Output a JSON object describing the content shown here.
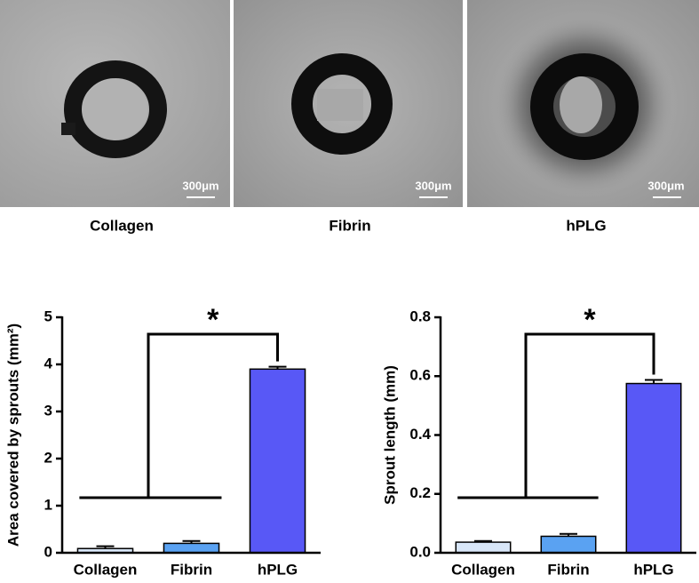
{
  "panels": [
    {
      "label": "Collagen",
      "scale_bar": "300μm"
    },
    {
      "label": "Fibrin",
      "scale_bar": "300μm"
    },
    {
      "label": "hPLG",
      "scale_bar": "300μm"
    }
  ],
  "chart_data": [
    {
      "type": "bar",
      "y_label": "Area covered by sprouts (mm²)",
      "categories": [
        "Collagen",
        "Fibrin",
        "hPLG"
      ],
      "values": [
        0.09,
        0.2,
        3.9
      ],
      "errors": [
        0.05,
        0.05,
        0.05
      ],
      "colors": [
        "#d8e6f8",
        "#5aa2f2",
        "#5858f6"
      ],
      "ylim": [
        0,
        5
      ],
      "yticks": [
        0,
        1,
        2,
        3,
        4,
        5
      ],
      "significance": "*"
    },
    {
      "type": "bar",
      "y_label": "Sprout length (mm)",
      "categories": [
        "Collagen",
        "Fibrin",
        "hPLG"
      ],
      "values": [
        0.036,
        0.056,
        0.575
      ],
      "errors": [
        0.004,
        0.008,
        0.012
      ],
      "colors": [
        "#d8e6f8",
        "#5aa2f2",
        "#5858f6"
      ],
      "ylim": [
        0,
        0.8
      ],
      "yticks": [
        {
          "value": 0,
          "label": "0.0"
        },
        0.2,
        0.4,
        0.6,
        0.8
      ],
      "significance": "*"
    }
  ]
}
